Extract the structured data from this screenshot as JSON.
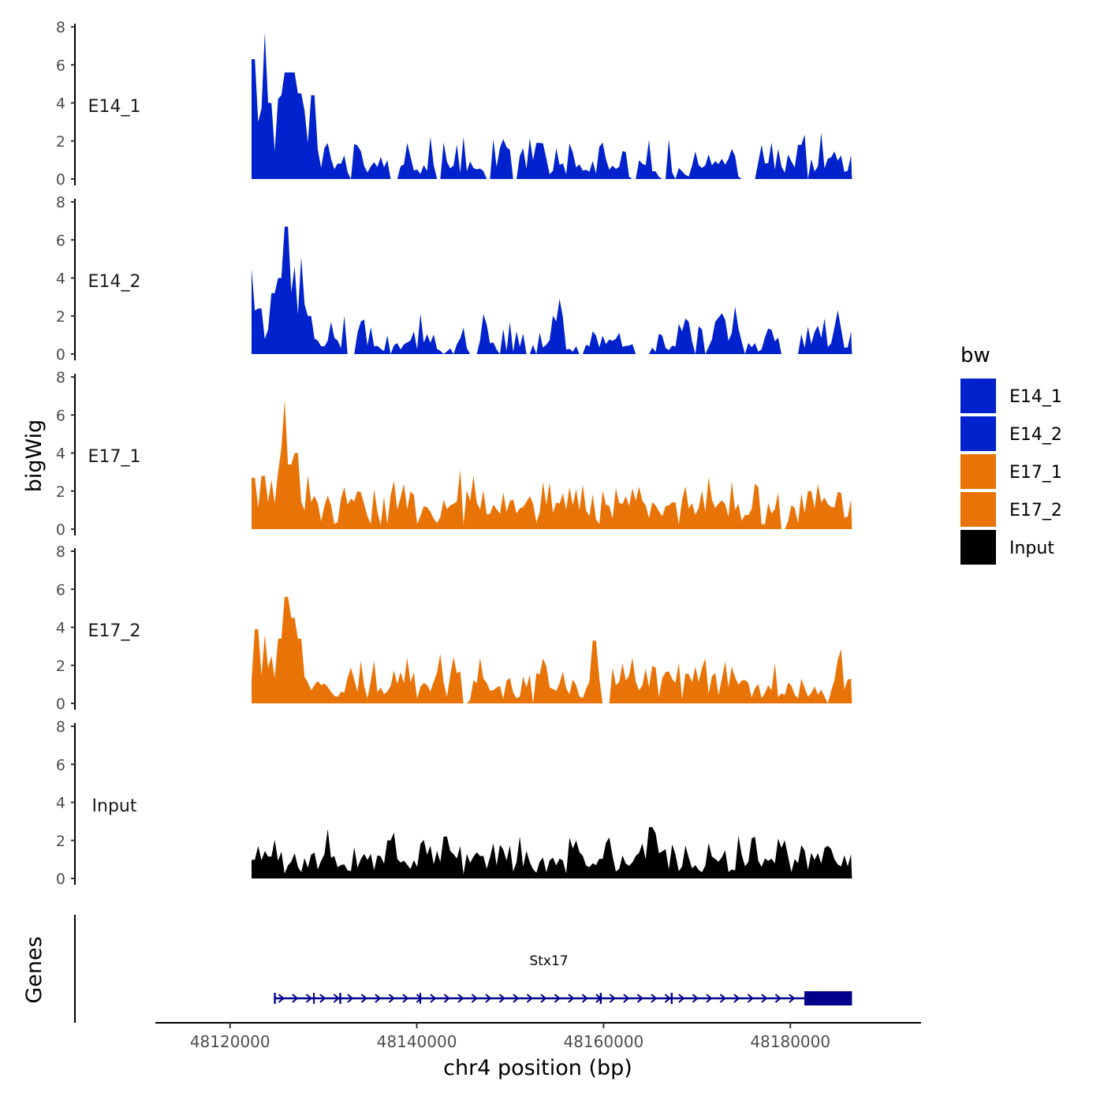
{
  "chart_data": {
    "type": "area",
    "title": "",
    "ylabel": "bigWig",
    "genes_label": "Genes",
    "xlabel": "chr4 position (bp)",
    "xlim": [
      48112000,
      48194000
    ],
    "data_range": [
      48122300,
      48186600
    ],
    "ylim": [
      0,
      8
    ],
    "y_ticks": [
      "0",
      "2",
      "4",
      "6",
      "8"
    ],
    "x_ticks": [
      {
        "value": 48120000,
        "label": "48120000"
      },
      {
        "value": 48140000,
        "label": "48140000"
      },
      {
        "value": 48160000,
        "label": "48160000"
      },
      {
        "value": 48180000,
        "label": "48180000"
      }
    ],
    "legend": {
      "title": "bw",
      "position": "right"
    },
    "series": [
      {
        "name": "E14_1",
        "color": "#0022CC",
        "seed": 11,
        "base": 0.5,
        "noise": 0.8,
        "gap": 0.22,
        "peaks": [
          [
            48122500,
            6.3
          ],
          [
            48123100,
            3.0
          ],
          [
            48123700,
            7.7
          ],
          [
            48124300,
            4.0
          ],
          [
            48125300,
            4.2
          ],
          [
            48125700,
            4.4
          ],
          [
            48126100,
            5.6
          ],
          [
            48126700,
            5.6
          ],
          [
            48127400,
            4.5
          ],
          [
            48128000,
            3.6
          ],
          [
            48128800,
            4.4
          ],
          [
            48130500,
            1.9
          ],
          [
            48139000,
            1.9
          ],
          [
            48153000,
            1.9
          ],
          [
            48177000,
            1.8
          ],
          [
            48181000,
            1.8
          ]
        ]
      },
      {
        "name": "E14_2",
        "color": "#0022CC",
        "seed": 23,
        "base": 0.45,
        "noise": 0.8,
        "gap": 0.24,
        "peaks": [
          [
            48122400,
            4.5
          ],
          [
            48123200,
            2.4
          ],
          [
            48124600,
            3.2
          ],
          [
            48125300,
            4.0
          ],
          [
            48126100,
            6.7
          ],
          [
            48126900,
            4.6
          ],
          [
            48127600,
            5.1
          ],
          [
            48128500,
            2.0
          ],
          [
            48130800,
            1.7
          ],
          [
            48155200,
            2.9
          ],
          [
            48169000,
            1.7
          ],
          [
            48172000,
            1.7
          ],
          [
            48174100,
            2.5
          ],
          [
            48185000,
            2.3
          ]
        ]
      },
      {
        "name": "E17_1",
        "color": "#E87408",
        "seed": 37,
        "base": 0.95,
        "noise": 0.85,
        "gap": 0.04,
        "peaks": [
          [
            48122500,
            2.7
          ],
          [
            48123500,
            2.8
          ],
          [
            48124500,
            2.6
          ],
          [
            48125300,
            3.0
          ],
          [
            48125800,
            6.8
          ],
          [
            48126400,
            3.4
          ],
          [
            48127100,
            4.0
          ],
          [
            48133000,
            1.6
          ],
          [
            48146000,
            2.8
          ],
          [
            48157000,
            2.1
          ],
          [
            48182000,
            2.0
          ],
          [
            48185000,
            1.8
          ]
        ]
      },
      {
        "name": "E17_2",
        "color": "#E87408",
        "seed": 53,
        "base": 0.75,
        "noise": 0.85,
        "gap": 0.07,
        "peaks": [
          [
            48122900,
            3.9
          ],
          [
            48123800,
            3.6
          ],
          [
            48124500,
            2.5
          ],
          [
            48125300,
            3.4
          ],
          [
            48126000,
            5.6
          ],
          [
            48126700,
            4.5
          ],
          [
            48127400,
            3.4
          ],
          [
            48139000,
            2.4
          ],
          [
            48159000,
            3.3
          ],
          [
            48163000,
            2.4
          ],
          [
            48173000,
            2.2
          ],
          [
            48185000,
            2.3
          ]
        ]
      },
      {
        "name": "Input",
        "color": "#000000",
        "seed": 71,
        "base": 0.9,
        "noise": 0.6,
        "gap": 0.02,
        "peaks": [
          [
            48130500,
            2.6
          ],
          [
            48137000,
            2.0
          ],
          [
            48143000,
            2.2
          ],
          [
            48157000,
            2.0
          ],
          [
            48165000,
            2.7
          ],
          [
            48176000,
            2.1
          ]
        ]
      }
    ],
    "gene": {
      "name": "Stx17",
      "color": "#00008B",
      "start": 48124700,
      "end": 48186600,
      "exons": [
        [
          48124700,
          48124900
        ],
        [
          48128900,
          48129000
        ],
        [
          48131700,
          48131900
        ],
        [
          48140300,
          48140400
        ],
        [
          48159600,
          48159800
        ],
        [
          48167200,
          48167400
        ],
        [
          48181500,
          48186600
        ]
      ]
    }
  }
}
